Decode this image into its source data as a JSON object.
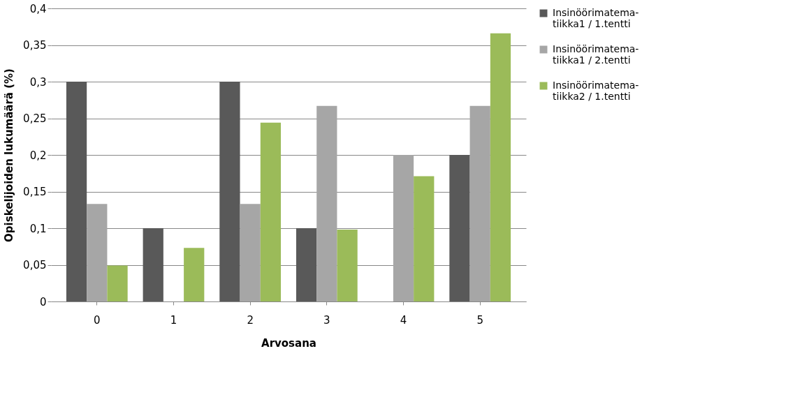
{
  "chart_data": {
    "type": "bar",
    "xlabel": "Arvosana",
    "ylabel": "Opiskelijoiden lukumäärä (%)",
    "categories": [
      "0",
      "1",
      "2",
      "3",
      "4",
      "5"
    ],
    "series": [
      {
        "name": "Insinöörimatema-\ntiikka1 / 1.tentti",
        "color": "#595959",
        "values": [
          0.3,
          0.1,
          0.3,
          0.1,
          null,
          0.2
        ]
      },
      {
        "name": "Insinöörimatema-\ntiikka1 / 2.tentti",
        "color": "#a6a6a6",
        "values": [
          0.133,
          null,
          0.133,
          0.267,
          0.2,
          0.267
        ]
      },
      {
        "name": "Insinöörimatema-\ntiikka2 / 1.tentti",
        "color": "#9bbb59",
        "values": [
          0.049,
          0.073,
          0.244,
          0.098,
          0.171,
          0.366
        ]
      }
    ],
    "ylim": [
      0,
      0.4
    ],
    "yticks": [
      0,
      {
        "value": 0.05,
        "label": "0,05"
      },
      {
        "value": 0.1,
        "label": "0,1"
      },
      {
        "value": 0.15,
        "label": "0,15"
      },
      {
        "value": 0.2,
        "label": "0,2"
      },
      {
        "value": 0.25,
        "label": "0,25"
      },
      {
        "value": 0.3,
        "label": "0,3"
      },
      {
        "value": 0.35,
        "label": "0,35"
      },
      {
        "value": 0.4,
        "label": "0,4"
      }
    ],
    "grid": "y",
    "legend": "right"
  }
}
